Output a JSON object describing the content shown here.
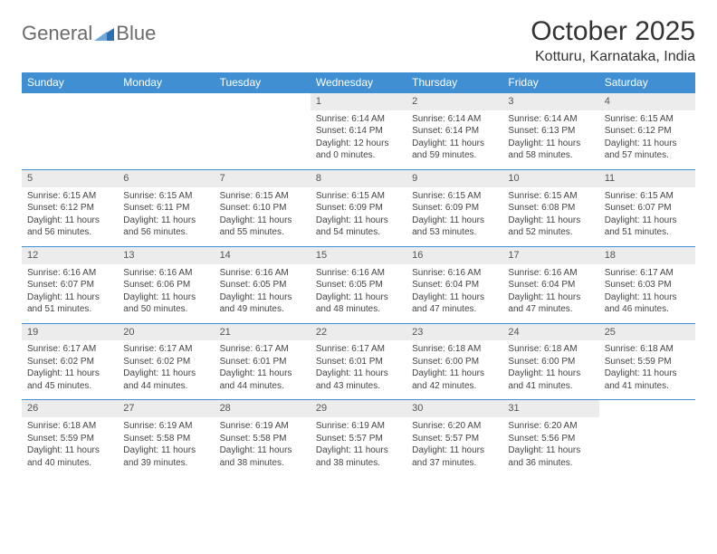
{
  "brand": {
    "part1": "General",
    "part2": "Blue"
  },
  "title": "October 2025",
  "location": "Kotturu, Karnataka, India",
  "colors": {
    "header_bg": "#3f8fd2",
    "header_fg": "#ffffff",
    "daynum_bg": "#ececec",
    "week_border": "#3f8fd2",
    "text": "#444444",
    "logo_gray": "#6b6b6b",
    "logo_blue": "#2f6fae"
  },
  "weekdays": [
    "Sunday",
    "Monday",
    "Tuesday",
    "Wednesday",
    "Thursday",
    "Friday",
    "Saturday"
  ],
  "weeks": [
    [
      {
        "empty": true
      },
      {
        "empty": true
      },
      {
        "empty": true
      },
      {
        "day": "1",
        "sunrise": "6:14 AM",
        "sunset": "6:14 PM",
        "daylight": "12 hours and 0 minutes."
      },
      {
        "day": "2",
        "sunrise": "6:14 AM",
        "sunset": "6:14 PM",
        "daylight": "11 hours and 59 minutes."
      },
      {
        "day": "3",
        "sunrise": "6:14 AM",
        "sunset": "6:13 PM",
        "daylight": "11 hours and 58 minutes."
      },
      {
        "day": "4",
        "sunrise": "6:15 AM",
        "sunset": "6:12 PM",
        "daylight": "11 hours and 57 minutes."
      }
    ],
    [
      {
        "day": "5",
        "sunrise": "6:15 AM",
        "sunset": "6:12 PM",
        "daylight": "11 hours and 56 minutes."
      },
      {
        "day": "6",
        "sunrise": "6:15 AM",
        "sunset": "6:11 PM",
        "daylight": "11 hours and 56 minutes."
      },
      {
        "day": "7",
        "sunrise": "6:15 AM",
        "sunset": "6:10 PM",
        "daylight": "11 hours and 55 minutes."
      },
      {
        "day": "8",
        "sunrise": "6:15 AM",
        "sunset": "6:09 PM",
        "daylight": "11 hours and 54 minutes."
      },
      {
        "day": "9",
        "sunrise": "6:15 AM",
        "sunset": "6:09 PM",
        "daylight": "11 hours and 53 minutes."
      },
      {
        "day": "10",
        "sunrise": "6:15 AM",
        "sunset": "6:08 PM",
        "daylight": "11 hours and 52 minutes."
      },
      {
        "day": "11",
        "sunrise": "6:15 AM",
        "sunset": "6:07 PM",
        "daylight": "11 hours and 51 minutes."
      }
    ],
    [
      {
        "day": "12",
        "sunrise": "6:16 AM",
        "sunset": "6:07 PM",
        "daylight": "11 hours and 51 minutes."
      },
      {
        "day": "13",
        "sunrise": "6:16 AM",
        "sunset": "6:06 PM",
        "daylight": "11 hours and 50 minutes."
      },
      {
        "day": "14",
        "sunrise": "6:16 AM",
        "sunset": "6:05 PM",
        "daylight": "11 hours and 49 minutes."
      },
      {
        "day": "15",
        "sunrise": "6:16 AM",
        "sunset": "6:05 PM",
        "daylight": "11 hours and 48 minutes."
      },
      {
        "day": "16",
        "sunrise": "6:16 AM",
        "sunset": "6:04 PM",
        "daylight": "11 hours and 47 minutes."
      },
      {
        "day": "17",
        "sunrise": "6:16 AM",
        "sunset": "6:04 PM",
        "daylight": "11 hours and 47 minutes."
      },
      {
        "day": "18",
        "sunrise": "6:17 AM",
        "sunset": "6:03 PM",
        "daylight": "11 hours and 46 minutes."
      }
    ],
    [
      {
        "day": "19",
        "sunrise": "6:17 AM",
        "sunset": "6:02 PM",
        "daylight": "11 hours and 45 minutes."
      },
      {
        "day": "20",
        "sunrise": "6:17 AM",
        "sunset": "6:02 PM",
        "daylight": "11 hours and 44 minutes."
      },
      {
        "day": "21",
        "sunrise": "6:17 AM",
        "sunset": "6:01 PM",
        "daylight": "11 hours and 44 minutes."
      },
      {
        "day": "22",
        "sunrise": "6:17 AM",
        "sunset": "6:01 PM",
        "daylight": "11 hours and 43 minutes."
      },
      {
        "day": "23",
        "sunrise": "6:18 AM",
        "sunset": "6:00 PM",
        "daylight": "11 hours and 42 minutes."
      },
      {
        "day": "24",
        "sunrise": "6:18 AM",
        "sunset": "6:00 PM",
        "daylight": "11 hours and 41 minutes."
      },
      {
        "day": "25",
        "sunrise": "6:18 AM",
        "sunset": "5:59 PM",
        "daylight": "11 hours and 41 minutes."
      }
    ],
    [
      {
        "day": "26",
        "sunrise": "6:18 AM",
        "sunset": "5:59 PM",
        "daylight": "11 hours and 40 minutes."
      },
      {
        "day": "27",
        "sunrise": "6:19 AM",
        "sunset": "5:58 PM",
        "daylight": "11 hours and 39 minutes."
      },
      {
        "day": "28",
        "sunrise": "6:19 AM",
        "sunset": "5:58 PM",
        "daylight": "11 hours and 38 minutes."
      },
      {
        "day": "29",
        "sunrise": "6:19 AM",
        "sunset": "5:57 PM",
        "daylight": "11 hours and 38 minutes."
      },
      {
        "day": "30",
        "sunrise": "6:20 AM",
        "sunset": "5:57 PM",
        "daylight": "11 hours and 37 minutes."
      },
      {
        "day": "31",
        "sunrise": "6:20 AM",
        "sunset": "5:56 PM",
        "daylight": "11 hours and 36 minutes."
      },
      {
        "empty": true
      }
    ]
  ],
  "labels": {
    "sunrise": "Sunrise: ",
    "sunset": "Sunset: ",
    "daylight": "Daylight: "
  }
}
